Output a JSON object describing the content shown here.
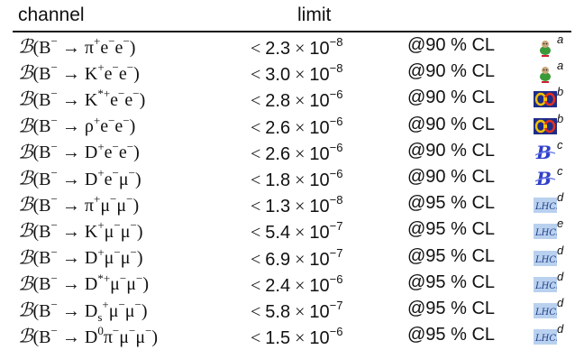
{
  "header": {
    "channel": "channel",
    "limit": "limit"
  },
  "rows": [
    {
      "B": "B",
      "open": "(B",
      "arrow": " → ",
      "final_html": "π<sup>+</sup>e<sup>−</sup>e<sup>−</sup>)",
      "lt": "< ",
      "num": "2.3",
      "times": " × ",
      "ten": "10",
      "exp": "−8",
      "cl": "@90 % CL",
      "logo": "babar-logo",
      "ref": "a"
    },
    {
      "B": "B",
      "open": "(B",
      "arrow": " → ",
      "final_html": "K<sup>+</sup>e<sup>−</sup>e<sup>−</sup>)",
      "lt": "< ",
      "num": "3.0",
      "times": " × ",
      "ten": "10",
      "exp": "−8",
      "cl": "@90 % CL",
      "logo": "babar-logo",
      "ref": "a"
    },
    {
      "B": "B",
      "open": "(B",
      "arrow": " → ",
      "final_html": "K<sup>*+</sup>e<sup>−</sup>e<sup>−</sup>)",
      "lt": "< ",
      "num": "2.8",
      "times": " × ",
      "ten": "10",
      "exp": "−6",
      "cl": "@90 % CL",
      "logo": "cleo-logo",
      "ref": "b"
    },
    {
      "B": "B",
      "open": "(B",
      "arrow": " → ",
      "final_html": "ρ<sup>+</sup>e<sup>−</sup>e<sup>−</sup>)",
      "lt": "< ",
      "num": "2.6",
      "times": " × ",
      "ten": "10",
      "exp": "−6",
      "cl": "@90 % CL",
      "logo": "cleo-logo",
      "ref": "b"
    },
    {
      "B": "B",
      "open": "(B",
      "arrow": " → ",
      "final_html": "D<sup>+</sup>e<sup>−</sup>e<sup>−</sup>)",
      "lt": "< ",
      "num": "2.6",
      "times": " × ",
      "ten": "10",
      "exp": "−6",
      "cl": "@90 % CL",
      "logo": "belle-logo",
      "ref": "c"
    },
    {
      "B": "B",
      "open": "(B",
      "arrow": " → ",
      "final_html": "D<sup>+</sup>e<sup>−</sup>μ<sup>−</sup>)",
      "lt": "< ",
      "num": "1.8",
      "times": " × ",
      "ten": "10",
      "exp": "−6",
      "cl": "@90 % CL",
      "logo": "belle-logo",
      "ref": "c"
    },
    {
      "B": "B",
      "open": "(B",
      "arrow": " → ",
      "final_html": "π<sup>+</sup>μ<sup>−</sup>μ<sup>−</sup>)",
      "lt": "< ",
      "num": "1.3",
      "times": " × ",
      "ten": "10",
      "exp": "−8",
      "cl": "@95 % CL",
      "logo": "lhcb-logo",
      "ref": "d"
    },
    {
      "B": "B",
      "open": "(B",
      "arrow": " → ",
      "final_html": "K<sup>+</sup>μ<sup>−</sup>μ<sup>−</sup>)",
      "lt": "< ",
      "num": "5.4",
      "times": " × ",
      "ten": "10",
      "exp": "−7",
      "cl": "@95 % CL",
      "logo": "lhcb-logo",
      "ref": "e"
    },
    {
      "B": "B",
      "open": "(B",
      "arrow": " → ",
      "final_html": "D<sup>+</sup>μ<sup>−</sup>μ<sup>−</sup>)",
      "lt": "< ",
      "num": "6.9",
      "times": " × ",
      "ten": "10",
      "exp": "−7",
      "cl": "@95 % CL",
      "logo": "lhcb-logo",
      "ref": "d"
    },
    {
      "B": "B",
      "open": "(B",
      "arrow": " → ",
      "final_html": "D<sup>*+</sup>μ<sup>−</sup>μ<sup>−</sup>)",
      "lt": "< ",
      "num": "2.4",
      "times": " × ",
      "ten": "10",
      "exp": "−6",
      "cl": "@95 % CL",
      "logo": "lhcb-logo",
      "ref": "d"
    },
    {
      "B": "B",
      "open": "(B",
      "arrow": " → ",
      "final_html": "D<sub style=\"font-size:13px\">s</sub><sup>+</sup>μ<sup>−</sup>μ<sup>−</sup>)",
      "lt": "< ",
      "num": "5.8",
      "times": " × ",
      "ten": "10",
      "exp": "−7",
      "cl": "@95 % CL",
      "logo": "lhcb-logo",
      "ref": "d"
    },
    {
      "B": "B",
      "open": "(B",
      "arrow": " → ",
      "final_html": "D<sup>0</sup>π<sup>−</sup>μ<sup>−</sup>μ<sup>−</sup>)",
      "lt": "< ",
      "num": "1.5",
      "times": " × ",
      "ten": "10",
      "exp": "−6",
      "cl": "@95 % CL",
      "logo": "lhcb-logo",
      "ref": "d"
    }
  ]
}
